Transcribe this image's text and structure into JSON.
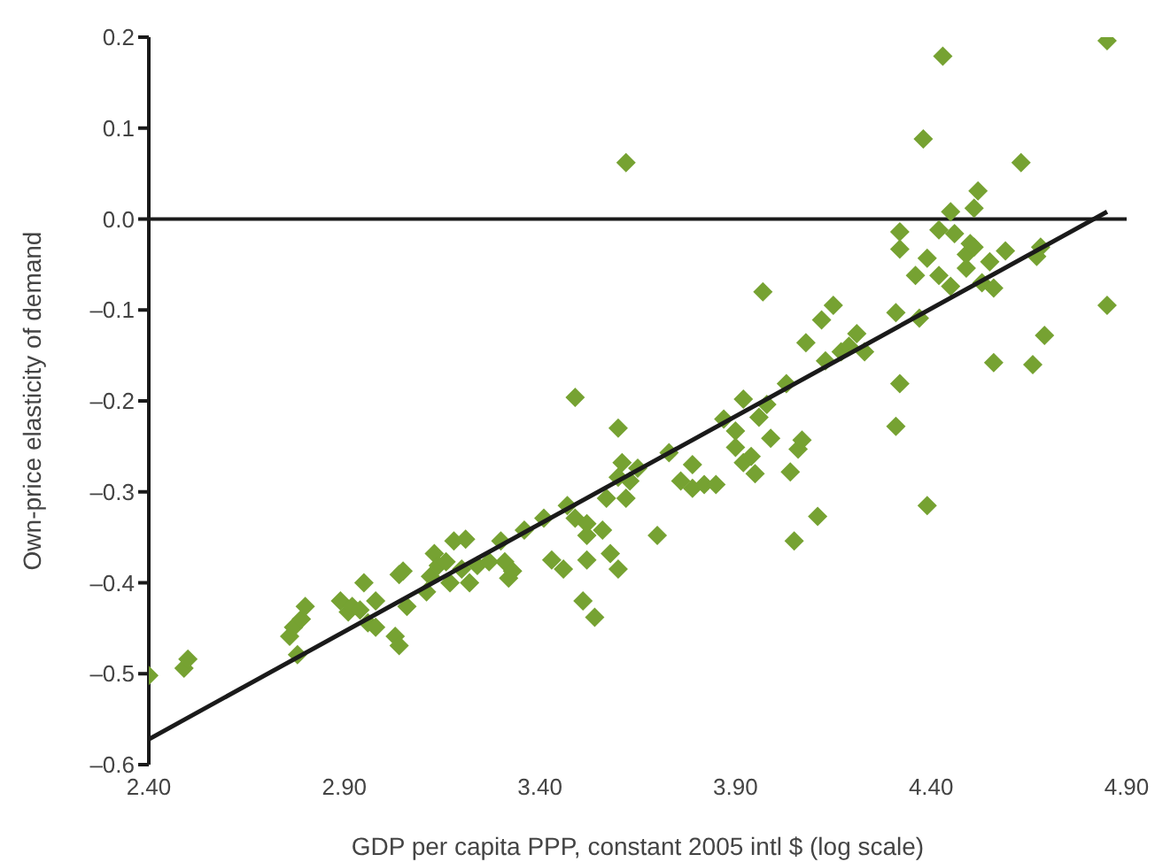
{
  "chart_data": {
    "type": "scatter",
    "xlabel": "GDP per capita PPP, constant 2005 intl $ (log scale)",
    "ylabel": "Own-price elasticity of demand",
    "grid": false,
    "xlim": [
      2.4,
      4.9
    ],
    "xticks": [
      {
        "value": 2.4,
        "label": "2.40"
      },
      {
        "value": 2.9,
        "label": "2.90"
      },
      {
        "value": 3.4,
        "label": "3.40"
      },
      {
        "value": 3.9,
        "label": "3.90"
      },
      {
        "value": 4.4,
        "label": "4.40"
      },
      {
        "value": 4.9,
        "label": "4.90"
      }
    ],
    "ylim": [
      -0.6,
      0.2
    ],
    "yticks": [
      {
        "value": -0.6,
        "label": "–0.6"
      },
      {
        "value": -0.5,
        "label": "–0.5"
      },
      {
        "value": -0.4,
        "label": "–0.4"
      },
      {
        "value": -0.3,
        "label": "–0.3"
      },
      {
        "value": -0.2,
        "label": "–0.2"
      },
      {
        "value": -0.1,
        "label": "–0.1"
      },
      {
        "value": 0,
        "label": "0.0"
      },
      {
        "value": 0.1,
        "label": "0.1"
      },
      {
        "value": 0.2,
        "label": "0.2"
      }
    ],
    "ref_lines": [
      {
        "axis": "y",
        "value": 0,
        "color": "#1a1a1a"
      }
    ],
    "series": [
      {
        "marker": "diamond",
        "color": "#76a232",
        "x": [
          2.4,
          2.49,
          2.5,
          2.76,
          2.77,
          2.79,
          2.8,
          2.78,
          2.89,
          2.91,
          2.92,
          2.94,
          2.95,
          2.96,
          2.98,
          2.98,
          3.04,
          3.05,
          3.03,
          3.04,
          3.06,
          3.11,
          3.12,
          3.13,
          3.14,
          3.16,
          3.18,
          3.17,
          3.2,
          3.21,
          3.22,
          3.24,
          3.27,
          3.3,
          3.31,
          3.32,
          3.33,
          3.36,
          3.41,
          3.43,
          3.46,
          3.47,
          3.49,
          3.49,
          3.51,
          3.52,
          3.52,
          3.52,
          3.54,
          3.56,
          3.57,
          3.58,
          3.6,
          3.6,
          3.6,
          3.61,
          3.62,
          3.62,
          3.63,
          3.65,
          3.7,
          3.73,
          3.76,
          3.79,
          3.79,
          3.82,
          3.85,
          3.87,
          3.9,
          3.9,
          3.92,
          3.92,
          3.94,
          3.95,
          3.96,
          3.97,
          3.98,
          3.99,
          4.03,
          4.04,
          4.05,
          4.06,
          4.07,
          4.08,
          4.11,
          4.12,
          4.13,
          4.15,
          4.17,
          4.19,
          4.21,
          4.23,
          4.31,
          4.31,
          4.32,
          4.32,
          4.32,
          4.36,
          4.37,
          4.38,
          4.39,
          4.39,
          4.42,
          4.42,
          4.43,
          4.45,
          4.45,
          4.46,
          4.49,
          4.49,
          4.5,
          4.51,
          4.51,
          4.52,
          4.53,
          4.55,
          4.56,
          4.56,
          4.59,
          4.63,
          4.66,
          4.67,
          4.68,
          4.69,
          4.85,
          4.85
        ],
        "values": [
          -0.502,
          -0.494,
          -0.484,
          -0.459,
          -0.449,
          -0.44,
          -0.426,
          -0.479,
          -0.42,
          -0.432,
          -0.426,
          -0.43,
          -0.4,
          -0.444,
          -0.449,
          -0.42,
          -0.391,
          -0.387,
          -0.459,
          -0.469,
          -0.426,
          -0.41,
          -0.393,
          -0.368,
          -0.381,
          -0.377,
          -0.354,
          -0.4,
          -0.385,
          -0.352,
          -0.4,
          -0.381,
          -0.377,
          -0.354,
          -0.377,
          -0.395,
          -0.387,
          -0.342,
          -0.329,
          -0.375,
          -0.385,
          -0.315,
          -0.196,
          -0.329,
          -0.42,
          -0.335,
          -0.375,
          -0.348,
          -0.438,
          -0.342,
          -0.307,
          -0.368,
          -0.23,
          -0.385,
          -0.284,
          -0.268,
          -0.307,
          0.062,
          -0.288,
          -0.274,
          -0.348,
          -0.257,
          -0.288,
          -0.27,
          -0.296,
          -0.292,
          -0.292,
          -0.22,
          -0.233,
          -0.251,
          -0.198,
          -0.268,
          -0.261,
          -0.28,
          -0.218,
          -0.08,
          -0.204,
          -0.241,
          -0.181,
          -0.278,
          -0.354,
          -0.253,
          -0.243,
          -0.136,
          -0.327,
          -0.111,
          -0.156,
          -0.095,
          -0.146,
          -0.14,
          -0.126,
          -0.146,
          -0.228,
          -0.103,
          -0.181,
          -0.033,
          -0.014,
          -0.062,
          -0.109,
          0.088,
          -0.043,
          -0.315,
          -0.062,
          -0.012,
          0.179,
          0.008,
          -0.074,
          -0.016,
          -0.054,
          -0.039,
          -0.027,
          0.012,
          -0.031,
          0.031,
          -0.07,
          -0.047,
          -0.076,
          -0.158,
          -0.035,
          0.062,
          -0.16,
          -0.041,
          -0.031,
          -0.128,
          0.196,
          -0.095
        ]
      },
      {
        "type": "line",
        "marker": "none",
        "color": "#1a1a1a",
        "x": [
          2.4,
          4.85
        ],
        "values": [
          -0.572,
          0.008
        ]
      }
    ]
  }
}
